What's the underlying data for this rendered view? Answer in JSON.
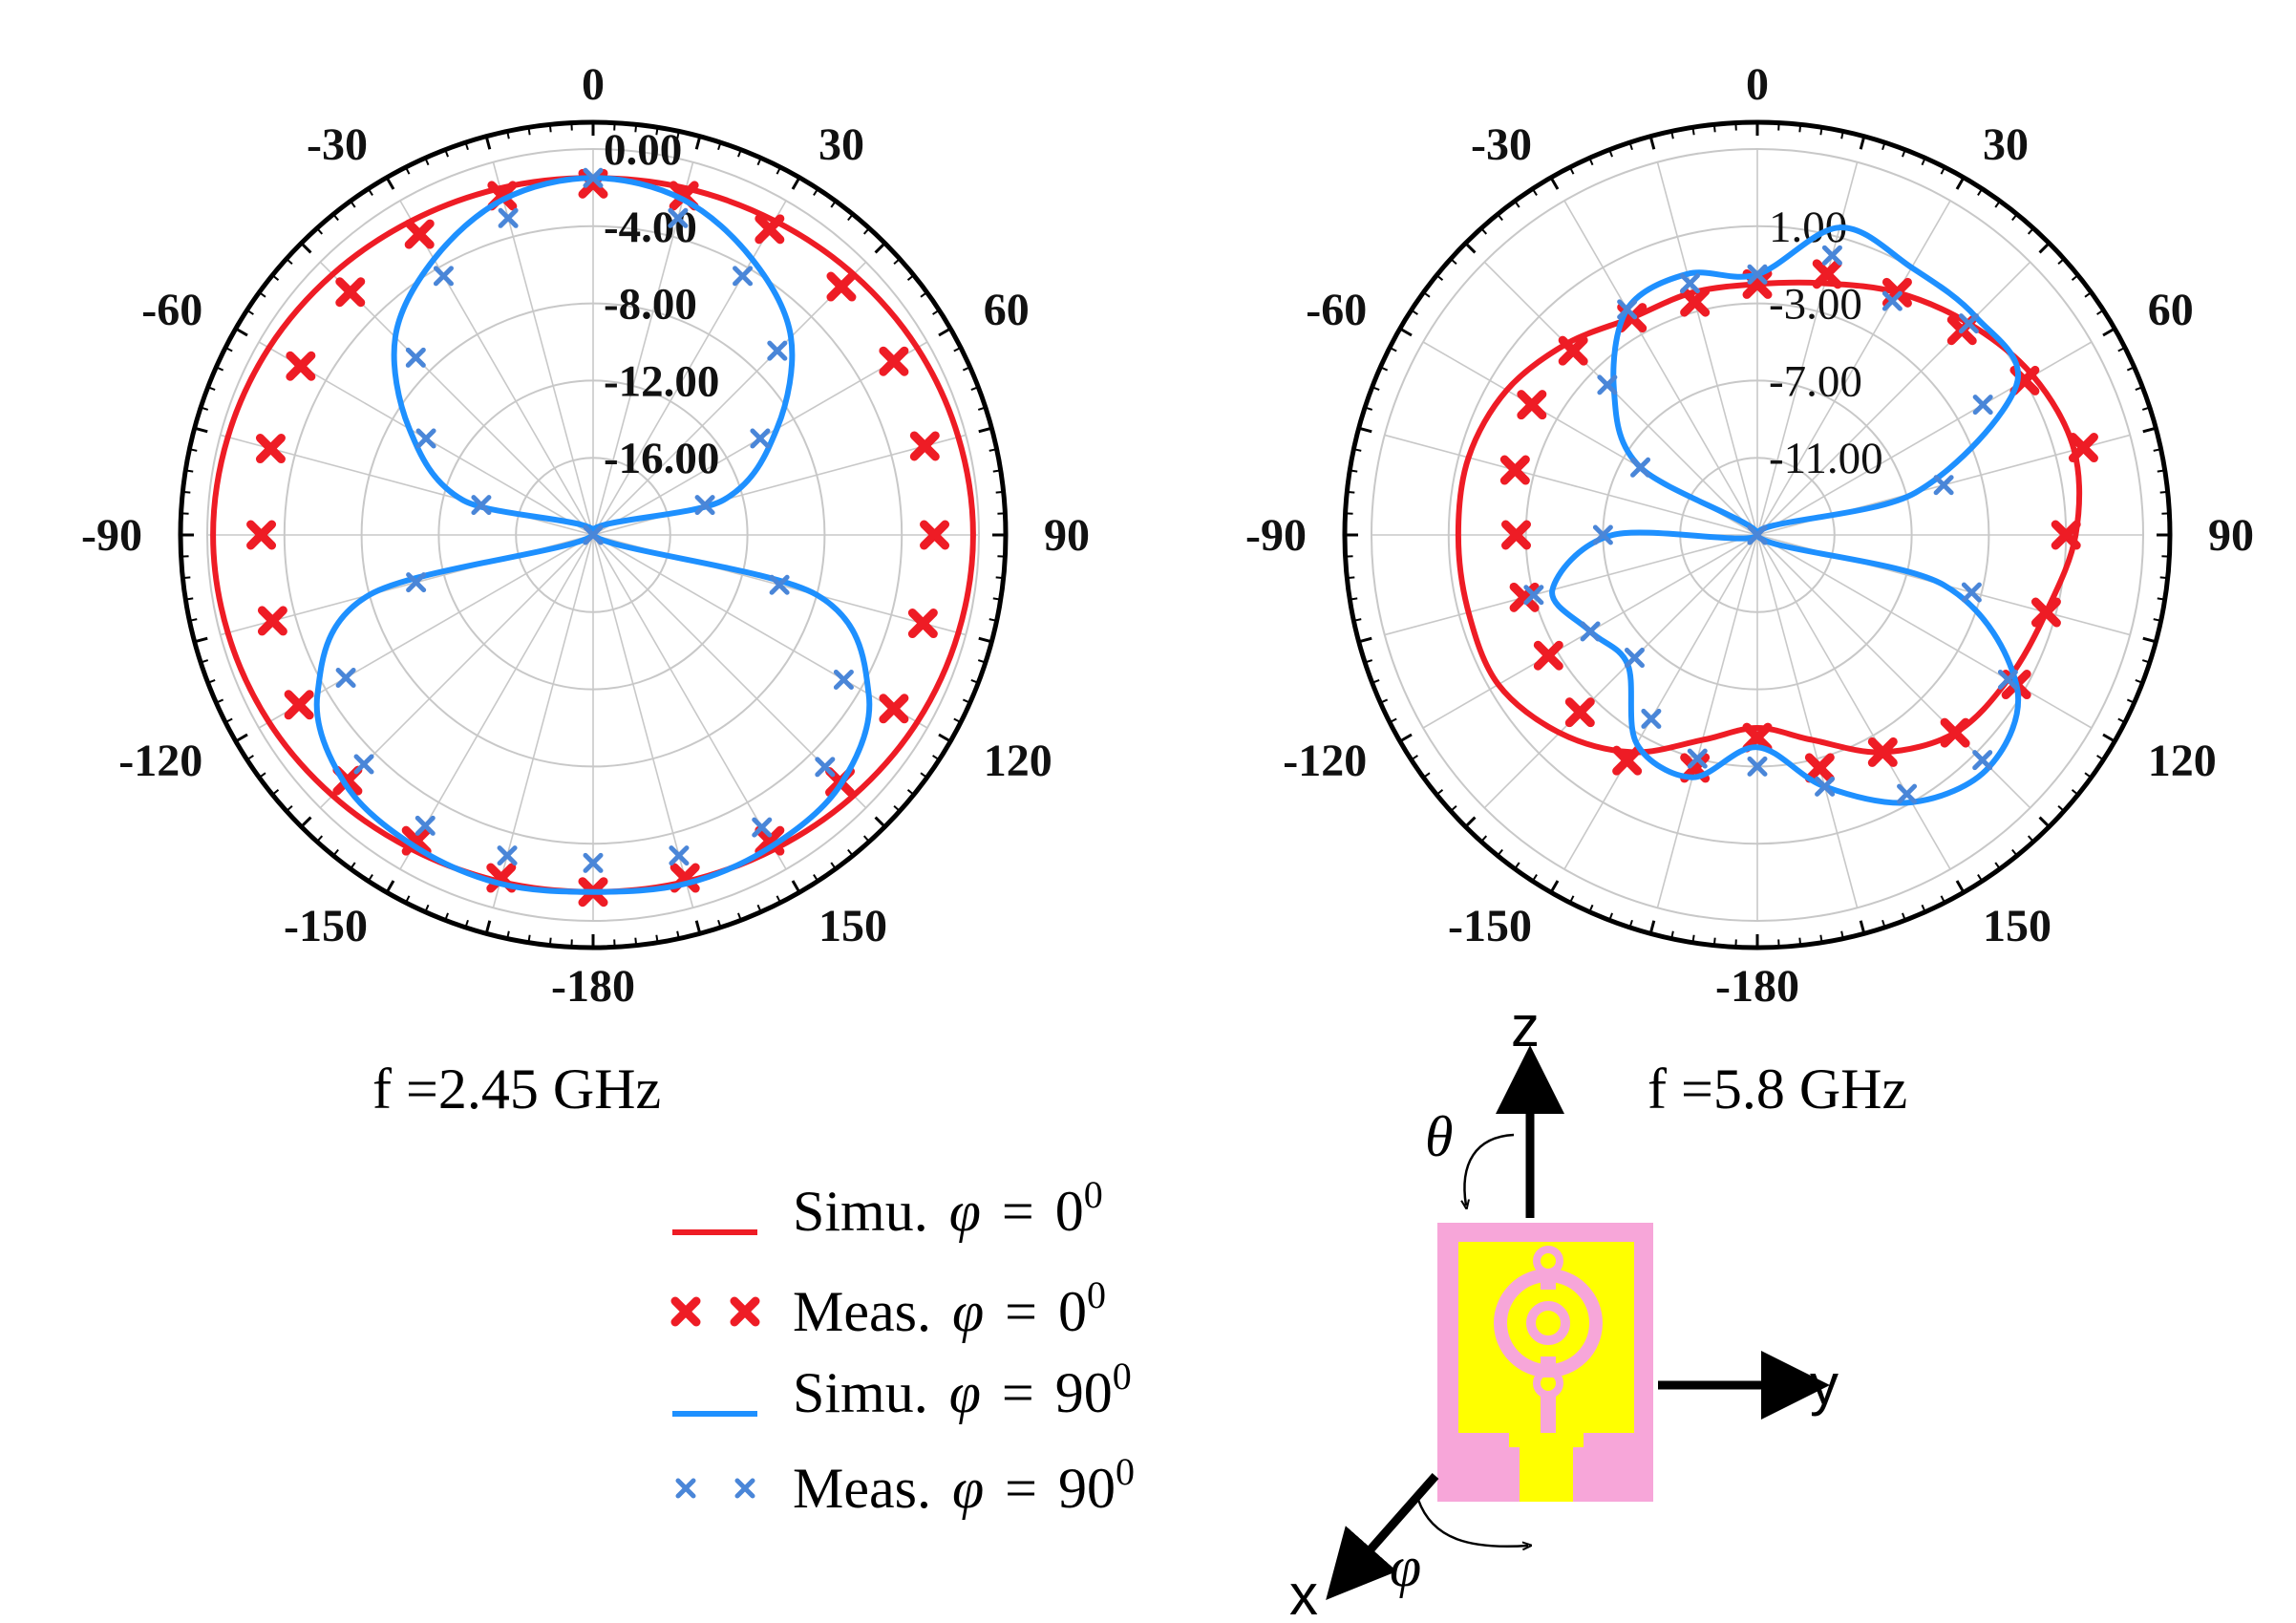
{
  "chart_data": [
    {
      "type": "polar",
      "caption": "f =2.45 GHz",
      "angle_ticks": [
        "0",
        "30",
        "60",
        "90",
        "120",
        "150",
        "-180",
        "-150",
        "-120",
        "-90",
        "-60",
        "-30"
      ],
      "radial_ticks": [
        "0.00",
        "-4.00",
        "-8.00",
        "-12.00",
        "-16.00"
      ],
      "rlim": [
        -20,
        0
      ],
      "angles": [
        0,
        15,
        30,
        45,
        60,
        75,
        90,
        105,
        120,
        135,
        150,
        165,
        180,
        195,
        210,
        225,
        240,
        255,
        270,
        285,
        300,
        315,
        330,
        345
      ],
      "series": [
        {
          "name": "Simu. φ = 0⁰",
          "style": "line",
          "values": [
            -1.5,
            -1.4,
            -1.2,
            -0.9,
            -0.6,
            -0.4,
            -0.3,
            -0.4,
            -0.6,
            -0.9,
            -1.2,
            -1.4,
            -1.5,
            -1.4,
            -1.2,
            -0.9,
            -0.6,
            -0.4,
            -0.3,
            -0.4,
            -0.6,
            -0.9,
            -1.2,
            -1.4
          ]
        },
        {
          "name": "Meas. φ = 0⁰",
          "style": "marker",
          "values": [
            -1.8,
            -1.8,
            -1.7,
            -1.8,
            -2.0,
            -2.2,
            -2.3,
            -2.3,
            -2.0,
            -1.9,
            -1.7,
            -1.6,
            -1.5,
            -1.6,
            -1.7,
            -2.0,
            -2.4,
            -2.8,
            -2.8,
            -2.7,
            -2.5,
            -2.2,
            -2.0,
            -1.8
          ]
        },
        {
          "name": "Simu. φ = 90⁰",
          "style": "line",
          "values": [
            -1.5,
            -2.0,
            -3.5,
            -5.5,
            -9.0,
            -13.0,
            -20.0,
            -8.0,
            -3.5,
            -1.8,
            -1.4,
            -1.3,
            -1.5,
            -1.3,
            -1.4,
            -1.8,
            -3.5,
            -8.0,
            -20.0,
            -13.0,
            -9.0,
            -5.5,
            -3.5,
            -2.0
          ]
        },
        {
          "name": "Meas. φ = 90⁰",
          "style": "marker",
          "values": [
            -1.5,
            -3.0,
            -4.5,
            -6.5,
            -10.0,
            -14.0,
            -20.0,
            -10.0,
            -5.0,
            -3.0,
            -2.5,
            -2.8,
            -3.0,
            -2.8,
            -2.6,
            -3.2,
            -5.2,
            -10.5,
            -20.0,
            -14.0,
            -10.0,
            -7.0,
            -4.5,
            -3.0
          ]
        }
      ]
    },
    {
      "type": "polar",
      "caption": "f =5.8 GHz",
      "angle_ticks": [
        "0",
        "30",
        "60",
        "90",
        "120",
        "150",
        "-180",
        "-150",
        "-120",
        "-90",
        "-60",
        "-30"
      ],
      "radial_ticks": [
        "1.00",
        "-3.00",
        "-7.00",
        "-11.00"
      ],
      "rlim": [
        -15,
        5
      ],
      "angles": [
        0,
        15,
        30,
        45,
        60,
        75,
        90,
        105,
        120,
        135,
        150,
        165,
        180,
        195,
        210,
        225,
        240,
        255,
        270,
        285,
        300,
        315,
        330,
        345
      ],
      "series": [
        {
          "name": "Simu. φ = 0⁰",
          "style": "line",
          "values": [
            -2.0,
            -1.5,
            -0.5,
            0.5,
            1.5,
            2.0,
            1.5,
            0.5,
            0.0,
            -0.5,
            -2.0,
            -4.0,
            -5.0,
            -4.0,
            -2.0,
            -0.5,
            0.5,
            0.5,
            0.5,
            0.5,
            0.0,
            -1.0,
            -2.0,
            -2.0
          ]
        },
        {
          "name": "Meas. φ = 0⁰",
          "style": "marker",
          "values": [
            -2.0,
            -1.0,
            -0.5,
            0.0,
            1.0,
            2.5,
            1.0,
            0.5,
            0.5,
            -0.5,
            -2.0,
            -2.5,
            -4.5,
            -2.5,
            -1.5,
            -2.0,
            -2.5,
            -2.5,
            -2.5,
            -2.0,
            -1.5,
            -1.5,
            -2.0,
            -2.5
          ]
        },
        {
          "name": "Simu. φ = 90⁰",
          "style": "line",
          "values": [
            -1.5,
            1.5,
            1.0,
            1.0,
            0.5,
            -6.5,
            -15.0,
            -5.0,
            0.5,
            2.0,
            1.0,
            -1.5,
            -4.0,
            -2.0,
            -2.5,
            -5.5,
            -5.0,
            -4.0,
            -7.5,
            -15.0,
            -8.0,
            -4.5,
            -1.5,
            -1.0
          ]
        },
        {
          "name": "Meas. φ = 90⁰",
          "style": "marker",
          "values": [
            -1.5,
            0.0,
            -1.0,
            0.5,
            -1.5,
            -5.0,
            -15.0,
            -3.5,
            0.0,
            1.5,
            0.5,
            -1.5,
            -3.0,
            -3.0,
            -4.0,
            -6.0,
            -5.0,
            -3.0,
            -7.0,
            -15.0,
            -8.0,
            -4.0,
            -1.5,
            -1.5
          ]
        }
      ]
    }
  ],
  "legend": {
    "items": [
      {
        "label": "Simu.",
        "phi": "φ",
        "eq": "=",
        "value": "0",
        "sup": "0",
        "color": "#ee1c25",
        "style": "line"
      },
      {
        "label": "Meas.",
        "phi": "φ",
        "eq": "=",
        "value": "0",
        "sup": "0",
        "color": "#ee1c25",
        "style": "marker"
      },
      {
        "label": "Simu.",
        "phi": "φ",
        "eq": "=",
        "value": "90",
        "sup": "0",
        "color": "#1e90ff",
        "style": "line"
      },
      {
        "label": "Meas.",
        "phi": "φ",
        "eq": "=",
        "value": "90",
        "sup": "0",
        "color": "#4a86d8",
        "style": "marker"
      }
    ]
  },
  "coordinate_diagram": {
    "z_label": "z",
    "y_label": "y",
    "x_label": "x",
    "theta_label": "θ",
    "phi_label": "φ",
    "substrate_color": "#f7a6d9",
    "patch_color": "#ffff00"
  },
  "colors": {
    "red": "#ee1c25",
    "blue": "#1e90ff",
    "blue_marker": "#4a86d8",
    "grid": "#c8c8c8",
    "rim": "#000000"
  }
}
